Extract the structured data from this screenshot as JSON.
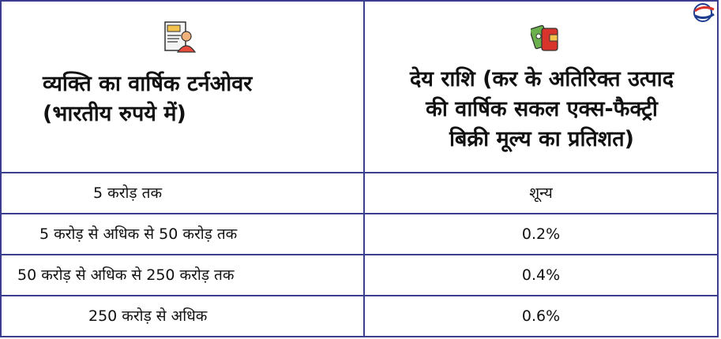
{
  "header": {
    "col1_line1": "व्यक्ति का वार्षिक टर्नओवर",
    "col1_line2": "(भारतीय रुपये में)",
    "col2_line1": "देय राशि (कर के अतिरिक्त उत्पाद",
    "col2_line2": "की वार्षिक सकल एक्स-फैक्ट्री",
    "col2_line3": "बिक्री मूल्य का प्रतिशत)",
    "col1_icon": "tax-person-icon",
    "col2_icon": "money-wallet-icon"
  },
  "rows": [
    {
      "turnover": "5 करोड़ तक",
      "rate": "शून्य"
    },
    {
      "turnover": "5 करोड़ से अधिक से 50 करोड़ तक",
      "rate": "0.2%"
    },
    {
      "turnover": "50 करोड़ से अधिक से 250 करोड़ तक",
      "rate": "0.4%"
    },
    {
      "turnover": "250 करोड़ से अधिक",
      "rate": "0.6%"
    }
  ],
  "colors": {
    "border": "#3d3d8f",
    "accent_red": "#d9342b",
    "accent_blue": "#1f3d8f"
  },
  "logo_icon": "brand-swirl-logo-icon"
}
